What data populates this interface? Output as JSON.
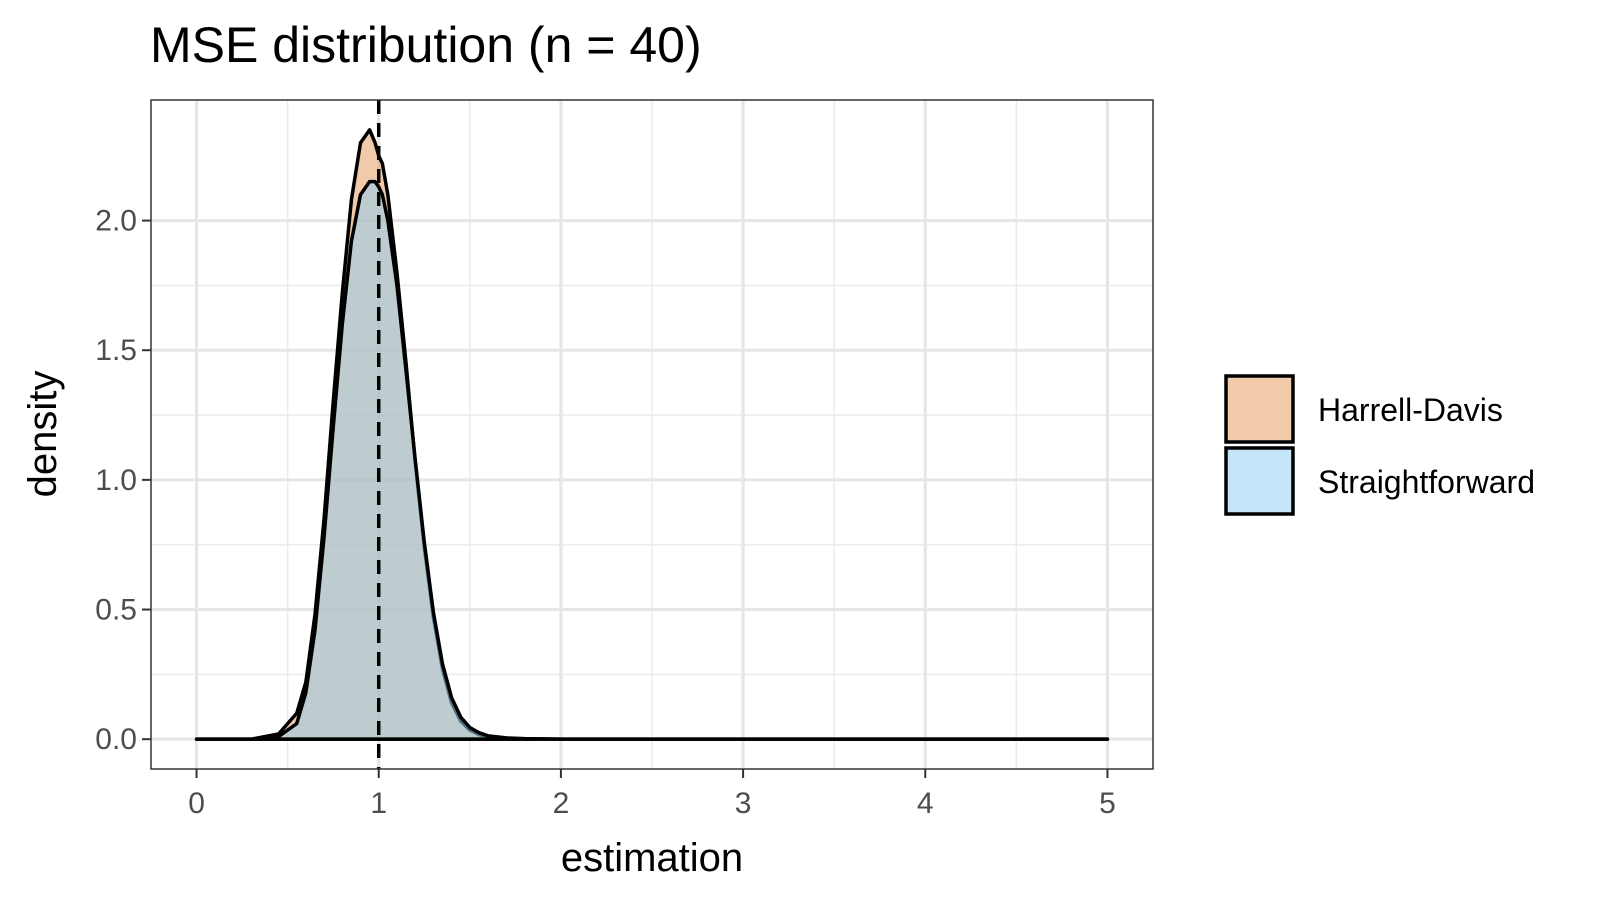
{
  "chart_data": {
    "type": "area",
    "title": "MSE distribution (n = 40)",
    "xlabel": "estimation",
    "ylabel": "density",
    "xlim": [
      -0.25,
      5.25
    ],
    "ylim": [
      -0.115,
      2.465
    ],
    "x_ticks": [
      0,
      1,
      2,
      3,
      4,
      5
    ],
    "x_tick_labels": [
      "0",
      "1",
      "2",
      "3",
      "4",
      "5"
    ],
    "y_ticks": [
      0,
      0.5,
      1,
      1.5,
      2
    ],
    "y_tick_labels": [
      "0.0",
      "0.5",
      "1.0",
      "1.5",
      "2.0"
    ],
    "reference_line": {
      "x": 1,
      "style": "dashed"
    },
    "grid": true,
    "legend_position": "right",
    "series": [
      {
        "name": "Harrell-Davis",
        "color": "#e69f62",
        "x": [
          0,
          0.3,
          0.45,
          0.55,
          0.6,
          0.65,
          0.7,
          0.75,
          0.8,
          0.85,
          0.9,
          0.95,
          0.98,
          1.0,
          1.02,
          1.05,
          1.1,
          1.15,
          1.2,
          1.25,
          1.3,
          1.35,
          1.4,
          1.45,
          1.5,
          1.55,
          1.6,
          1.7,
          1.8,
          2.0,
          3.0,
          4.0,
          5.0
        ],
        "y": [
          0,
          0,
          0.02,
          0.1,
          0.22,
          0.48,
          0.85,
          1.3,
          1.72,
          2.08,
          2.3,
          2.35,
          2.3,
          2.25,
          2.22,
          2.1,
          1.8,
          1.45,
          1.07,
          0.74,
          0.47,
          0.27,
          0.14,
          0.07,
          0.035,
          0.018,
          0.008,
          0.003,
          0.001,
          0,
          0,
          0,
          0
        ]
      },
      {
        "name": "Straightforward",
        "color": "#94cdf0",
        "x": [
          0,
          0.3,
          0.45,
          0.55,
          0.6,
          0.65,
          0.7,
          0.75,
          0.8,
          0.85,
          0.9,
          0.95,
          0.98,
          1.0,
          1.02,
          1.05,
          1.1,
          1.15,
          1.2,
          1.25,
          1.3,
          1.35,
          1.4,
          1.45,
          1.5,
          1.55,
          1.6,
          1.7,
          1.8,
          2.0,
          3.0,
          4.0,
          5.0
        ],
        "y": [
          0,
          0,
          0.01,
          0.06,
          0.18,
          0.42,
          0.78,
          1.2,
          1.6,
          1.92,
          2.1,
          2.15,
          2.15,
          2.13,
          2.1,
          2.0,
          1.75,
          1.42,
          1.08,
          0.76,
          0.49,
          0.29,
          0.16,
          0.085,
          0.045,
          0.025,
          0.013,
          0.005,
          0.002,
          0,
          0,
          0,
          0
        ]
      }
    ]
  }
}
